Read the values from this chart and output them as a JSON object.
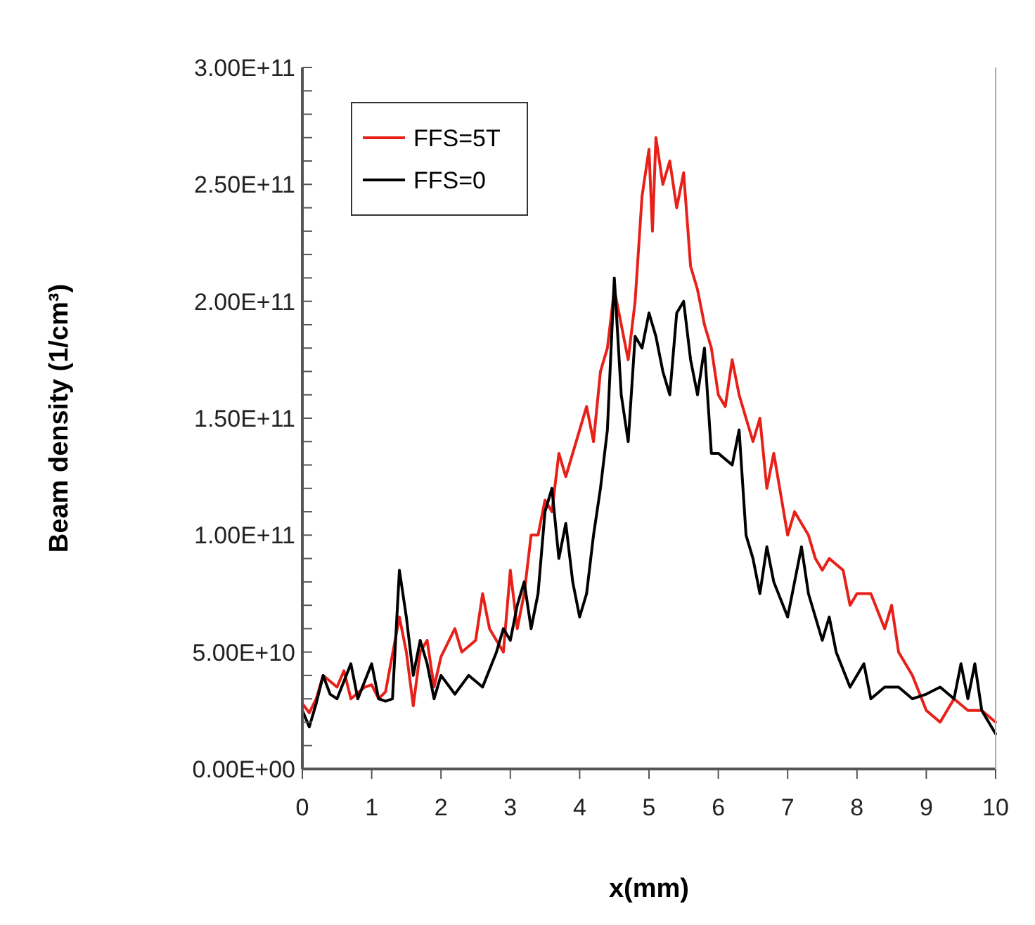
{
  "chart_data": {
    "type": "line",
    "xlabel": "x(mm)",
    "ylabel": "Beam density (1/cm³)",
    "xlim": [
      0,
      10
    ],
    "xticks": [
      0,
      1,
      2,
      3,
      4,
      5,
      6,
      7,
      8,
      9,
      10
    ],
    "ylim": [
      0,
      300000000000.0
    ],
    "yticks": [
      {
        "value": 0,
        "label": "0.00E+00"
      },
      {
        "value": 10000000000.0,
        "label": null
      },
      {
        "value": 20000000000.0,
        "label": null
      },
      {
        "value": 30000000000.0,
        "label": null
      },
      {
        "value": 40000000000.0,
        "label": null
      },
      {
        "value": 50000000000.0,
        "label": "5.00E+10"
      },
      {
        "value": 60000000000.0,
        "label": null
      },
      {
        "value": 70000000000.0,
        "label": null
      },
      {
        "value": 80000000000.0,
        "label": null
      },
      {
        "value": 90000000000.0,
        "label": null
      },
      {
        "value": 100000000000.0,
        "label": "1.00E+11"
      },
      {
        "value": 110000000000.0,
        "label": null
      },
      {
        "value": 120000000000.0,
        "label": null
      },
      {
        "value": 130000000000.0,
        "label": null
      },
      {
        "value": 140000000000.0,
        "label": null
      },
      {
        "value": 150000000000.0,
        "label": "1.50E+11"
      },
      {
        "value": 160000000000.0,
        "label": null
      },
      {
        "value": 170000000000.0,
        "label": null
      },
      {
        "value": 180000000000.0,
        "label": null
      },
      {
        "value": 190000000000.0,
        "label": null
      },
      {
        "value": 200000000000.0,
        "label": "2.00E+11"
      },
      {
        "value": 210000000000.0,
        "label": null
      },
      {
        "value": 220000000000.0,
        "label": null
      },
      {
        "value": 230000000000.0,
        "label": null
      },
      {
        "value": 240000000000.0,
        "label": null
      },
      {
        "value": 250000000000.0,
        "label": "2.50E+11"
      },
      {
        "value": 260000000000.0,
        "label": null
      },
      {
        "value": 270000000000.0,
        "label": null
      },
      {
        "value": 280000000000.0,
        "label": null
      },
      {
        "value": 290000000000.0,
        "label": null
      },
      {
        "value": 300000000000.0,
        "label": "3.00E+11"
      }
    ],
    "grid": false,
    "legend": "top left",
    "marker": "none",
    "line_style": "solid",
    "series": [
      {
        "name": "FFS=5T",
        "color": "#e8201a",
        "x": [
          0,
          0.1,
          0.2,
          0.3,
          0.5,
          0.6,
          0.7,
          0.9,
          1.0,
          1.1,
          1.2,
          1.4,
          1.5,
          1.6,
          1.7,
          1.8,
          1.9,
          2.0,
          2.2,
          2.3,
          2.5,
          2.6,
          2.7,
          2.9,
          3.0,
          3.1,
          3.2,
          3.3,
          3.4,
          3.5,
          3.6,
          3.7,
          3.8,
          4.0,
          4.1,
          4.2,
          4.3,
          4.4,
          4.5,
          4.6,
          4.7,
          4.8,
          4.9,
          5.0,
          5.05,
          5.1,
          5.2,
          5.3,
          5.4,
          5.5,
          5.6,
          5.7,
          5.8,
          5.9,
          6.0,
          6.1,
          6.2,
          6.3,
          6.5,
          6.6,
          6.7,
          6.8,
          7.0,
          7.1,
          7.3,
          7.4,
          7.5,
          7.6,
          7.8,
          7.9,
          8.0,
          8.2,
          8.4,
          8.5,
          8.6,
          8.8,
          9.0,
          9.2,
          9.4,
          9.6,
          9.8,
          10
        ],
        "values": [
          28000000000.0,
          24000000000.0,
          30000000000.0,
          40000000000.0,
          35000000000.0,
          42000000000.0,
          30000000000.0,
          35000000000.0,
          36000000000.0,
          30000000000.0,
          33000000000.0,
          65000000000.0,
          50000000000.0,
          27000000000.0,
          50000000000.0,
          55000000000.0,
          35000000000.0,
          48000000000.0,
          60000000000.0,
          50000000000.0,
          55000000000.0,
          75000000000.0,
          60000000000.0,
          50000000000.0,
          85000000000.0,
          60000000000.0,
          75000000000.0,
          100000000000.0,
          100000000000.0,
          115000000000.0,
          110000000000.0,
          135000000000.0,
          125000000000.0,
          145000000000.0,
          155000000000.0,
          140000000000.0,
          170000000000.0,
          180000000000.0,
          205000000000.0,
          190000000000.0,
          175000000000.0,
          200000000000.0,
          245000000000.0,
          265000000000.0,
          230000000000.0,
          270000000000.0,
          250000000000.0,
          260000000000.0,
          240000000000.0,
          255000000000.0,
          215000000000.0,
          205000000000.0,
          190000000000.0,
          180000000000.0,
          160000000000.0,
          155000000000.0,
          175000000000.0,
          160000000000.0,
          140000000000.0,
          150000000000.0,
          120000000000.0,
          135000000000.0,
          100000000000.0,
          110000000000.0,
          100000000000.0,
          90000000000.0,
          85000000000.0,
          90000000000.0,
          85000000000.0,
          70000000000.0,
          75000000000.0,
          75000000000.0,
          60000000000.0,
          70000000000.0,
          50000000000.0,
          40000000000.0,
          25000000000.0,
          20000000000.0,
          30000000000.0,
          25000000000.0,
          25000000000.0,
          20000000000.0
        ]
      },
      {
        "name": "FFS=0",
        "color": "#000000",
        "x": [
          0,
          0.1,
          0.2,
          0.3,
          0.4,
          0.5,
          0.7,
          0.8,
          1.0,
          1.1,
          1.2,
          1.3,
          1.4,
          1.5,
          1.6,
          1.7,
          1.8,
          1.9,
          2.0,
          2.2,
          2.4,
          2.6,
          2.8,
          2.9,
          3.0,
          3.1,
          3.2,
          3.3,
          3.4,
          3.5,
          3.6,
          3.7,
          3.8,
          3.9,
          4.0,
          4.1,
          4.2,
          4.3,
          4.4,
          4.5,
          4.6,
          4.7,
          4.8,
          4.9,
          5.0,
          5.1,
          5.2,
          5.3,
          5.4,
          5.5,
          5.6,
          5.7,
          5.8,
          5.9,
          6.0,
          6.2,
          6.3,
          6.4,
          6.5,
          6.6,
          6.7,
          6.8,
          7.0,
          7.2,
          7.3,
          7.5,
          7.6,
          7.7,
          7.9,
          8.1,
          8.2,
          8.4,
          8.6,
          8.8,
          9.0,
          9.2,
          9.4,
          9.5,
          9.6,
          9.7,
          9.8,
          9.9,
          10
        ],
        "values": [
          25000000000.0,
          18000000000.0,
          28000000000.0,
          40000000000.0,
          32000000000.0,
          30000000000.0,
          45000000000.0,
          30000000000.0,
          45000000000.0,
          30000000000.0,
          29000000000.0,
          30000000000.0,
          85000000000.0,
          65000000000.0,
          40000000000.0,
          55000000000.0,
          45000000000.0,
          30000000000.0,
          40000000000.0,
          32000000000.0,
          40000000000.0,
          35000000000.0,
          50000000000.0,
          60000000000.0,
          55000000000.0,
          70000000000.0,
          80000000000.0,
          60000000000.0,
          75000000000.0,
          110000000000.0,
          120000000000.0,
          90000000000.0,
          105000000000.0,
          80000000000.0,
          65000000000.0,
          75000000000.0,
          100000000000.0,
          120000000000.0,
          145000000000.0,
          210000000000.0,
          160000000000.0,
          140000000000.0,
          185000000000.0,
          180000000000.0,
          195000000000.0,
          185000000000.0,
          170000000000.0,
          160000000000.0,
          195000000000.0,
          200000000000.0,
          175000000000.0,
          160000000000.0,
          180000000000.0,
          135000000000.0,
          135000000000.0,
          130000000000.0,
          145000000000.0,
          100000000000.0,
          90000000000.0,
          75000000000.0,
          95000000000.0,
          80000000000.0,
          65000000000.0,
          95000000000.0,
          75000000000.0,
          55000000000.0,
          65000000000.0,
          50000000000.0,
          35000000000.0,
          45000000000.0,
          30000000000.0,
          35000000000.0,
          35000000000.0,
          30000000000.0,
          32000000000.0,
          35000000000.0,
          30000000000.0,
          45000000000.0,
          30000000000.0,
          45000000000.0,
          25000000000.0,
          20000000000.0,
          15000000000.0
        ]
      }
    ]
  }
}
